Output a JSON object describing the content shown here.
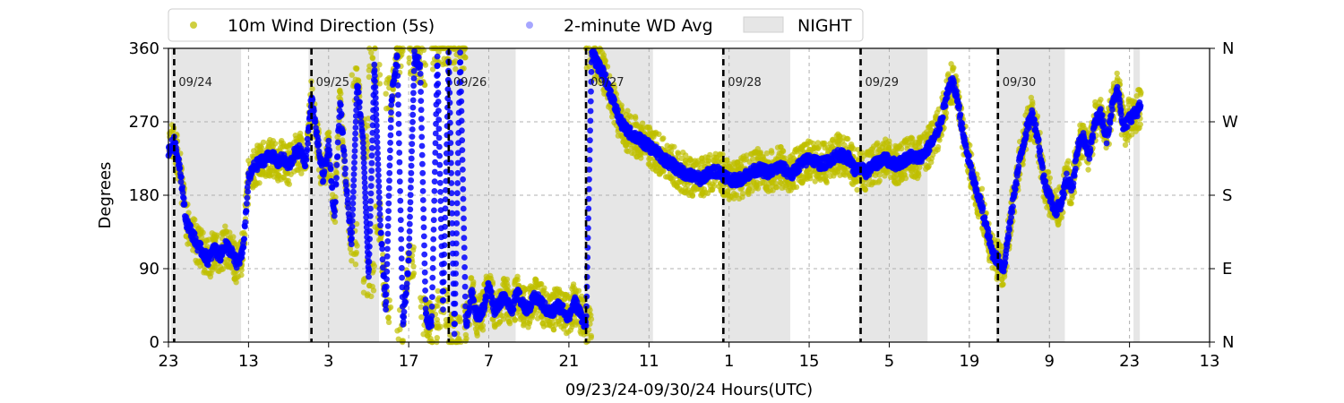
{
  "chart_data": {
    "type": "scatter",
    "title": "",
    "xlabel": "09/23/24-09/30/24  Hours(UTC)",
    "ylabel": "Degrees",
    "xlim_hours": [
      0,
      182
    ],
    "ylim": [
      0,
      360
    ],
    "x_ticks": [
      {
        "hour": 0,
        "label": "23"
      },
      {
        "hour": 14,
        "label": "13"
      },
      {
        "hour": 28,
        "label": "3"
      },
      {
        "hour": 42,
        "label": "17"
      },
      {
        "hour": 56,
        "label": "7"
      },
      {
        "hour": 70,
        "label": "21"
      },
      {
        "hour": 84,
        "label": "11"
      },
      {
        "hour": 98,
        "label": "1"
      },
      {
        "hour": 112,
        "label": "15"
      },
      {
        "hour": 126,
        "label": "5"
      },
      {
        "hour": 140,
        "label": "19"
      },
      {
        "hour": 154,
        "label": "9"
      },
      {
        "hour": 168,
        "label": "23"
      },
      {
        "hour": 182,
        "label": "13"
      }
    ],
    "y_ticks": [
      0,
      90,
      180,
      270,
      360
    ],
    "y_right_ticks": [
      {
        "value": 0,
        "label": "N"
      },
      {
        "value": 90,
        "label": "E"
      },
      {
        "value": 180,
        "label": "S"
      },
      {
        "value": 270,
        "label": "W"
      },
      {
        "value": 360,
        "label": "N"
      }
    ],
    "grid": true,
    "day_markers": [
      {
        "hour": 1,
        "label": "09/24"
      },
      {
        "hour": 25,
        "label": "09/25"
      },
      {
        "hour": 49,
        "label": "09/26"
      },
      {
        "hour": 73,
        "label": "09/27"
      },
      {
        "hour": 97,
        "label": "09/28"
      },
      {
        "hour": 121,
        "label": "09/29"
      },
      {
        "hour": 145,
        "label": "09/30"
      }
    ],
    "night_periods": [
      [
        0.5,
        12.7
      ],
      [
        24.5,
        36.8
      ],
      [
        48.7,
        60.7
      ],
      [
        72.7,
        84.7
      ],
      [
        96.7,
        108.7
      ],
      [
        120.7,
        132.7
      ],
      [
        144.7,
        156.7
      ],
      [
        168.7,
        169.8
      ]
    ],
    "legend": {
      "placement": "top-outside",
      "entries": [
        {
          "label": "10m Wind Direction (5s)",
          "kind": "dot",
          "color": "#bfbf00"
        },
        {
          "label": "2-minute WD Avg",
          "kind": "dot",
          "color": "#0000ff"
        },
        {
          "label": "NIGHT",
          "kind": "box",
          "color": "#e6e6e6"
        }
      ]
    },
    "series": [
      {
        "name": "2-minute WD Avg",
        "color": "#0000ff",
        "x": [
          0,
          1,
          2,
          3,
          4,
          5,
          6,
          7,
          8,
          9,
          10,
          11,
          12,
          13,
          14,
          15,
          16,
          17,
          18,
          19,
          20,
          21,
          22,
          23,
          24,
          25,
          26,
          27,
          28,
          29,
          30,
          31,
          32,
          33,
          34,
          35,
          36,
          37,
          38,
          39,
          40,
          41,
          42,
          43,
          44,
          45,
          46,
          47,
          48,
          49,
          50,
          51,
          52,
          53,
          54,
          55,
          56,
          57,
          58,
          59,
          60,
          61,
          62,
          63,
          64,
          65,
          66,
          67,
          68,
          69,
          70,
          71,
          72,
          73,
          74,
          75,
          76,
          77,
          78,
          79,
          80,
          81,
          82,
          83,
          84,
          85,
          86,
          87,
          88,
          89,
          90,
          91,
          92,
          93,
          94,
          95,
          96,
          97,
          98,
          99,
          100,
          101,
          102,
          103,
          104,
          105,
          106,
          107,
          108,
          109,
          110,
          111,
          112,
          113,
          114,
          115,
          116,
          117,
          118,
          119,
          120,
          121,
          122,
          123,
          124,
          125,
          126,
          127,
          128,
          129,
          130,
          131,
          132,
          133,
          134,
          135,
          136,
          137,
          138,
          139,
          140,
          141,
          142,
          143,
          144,
          145,
          146,
          147,
          148,
          149,
          150,
          151,
          152,
          153,
          154,
          155,
          156,
          157,
          158,
          159,
          160,
          161,
          162,
          163,
          164,
          165,
          166,
          167,
          168,
          169,
          170
        ],
        "y": [
          235,
          245,
          215,
          150,
          135,
          120,
          110,
          100,
          115,
          105,
          120,
          110,
          95,
          110,
          200,
          215,
          220,
          225,
          230,
          220,
          225,
          215,
          230,
          235,
          220,
          300,
          250,
          200,
          240,
          150,
          300,
          200,
          120,
          320,
          250,
          80,
          340,
          150,
          40,
          300,
          350,
          20,
          100,
          350,
          340,
          30,
          20,
          350,
          40,
          355,
          10,
          355,
          20,
          60,
          30,
          40,
          70,
          40,
          50,
          55,
          40,
          60,
          45,
          40,
          55,
          50,
          40,
          35,
          45,
          40,
          30,
          50,
          35,
          20,
          355,
          340,
          330,
          310,
          290,
          270,
          260,
          255,
          250,
          245,
          240,
          235,
          228,
          222,
          218,
          212,
          208,
          205,
          202,
          200,
          205,
          208,
          210,
          205,
          200,
          198,
          200,
          205,
          208,
          212,
          210,
          208,
          212,
          215,
          210,
          205,
          215,
          220,
          225,
          222,
          218,
          220,
          225,
          230,
          228,
          225,
          210,
          212,
          208,
          215,
          220,
          225,
          222,
          218,
          220,
          225,
          228,
          225,
          230,
          240,
          250,
          270,
          300,
          320,
          295,
          250,
          220,
          190,
          170,
          140,
          110,
          100,
          90,
          140,
          190,
          230,
          260,
          280,
          250,
          200,
          180,
          160,
          170,
          200,
          190,
          240,
          250,
          230,
          270,
          280,
          250,
          290,
          310,
          260,
          275,
          280,
          290
        ]
      },
      {
        "name": "10m Wind Direction (5s)",
        "color": "#bfbf00",
        "spread_degrees": 25
      }
    ]
  }
}
